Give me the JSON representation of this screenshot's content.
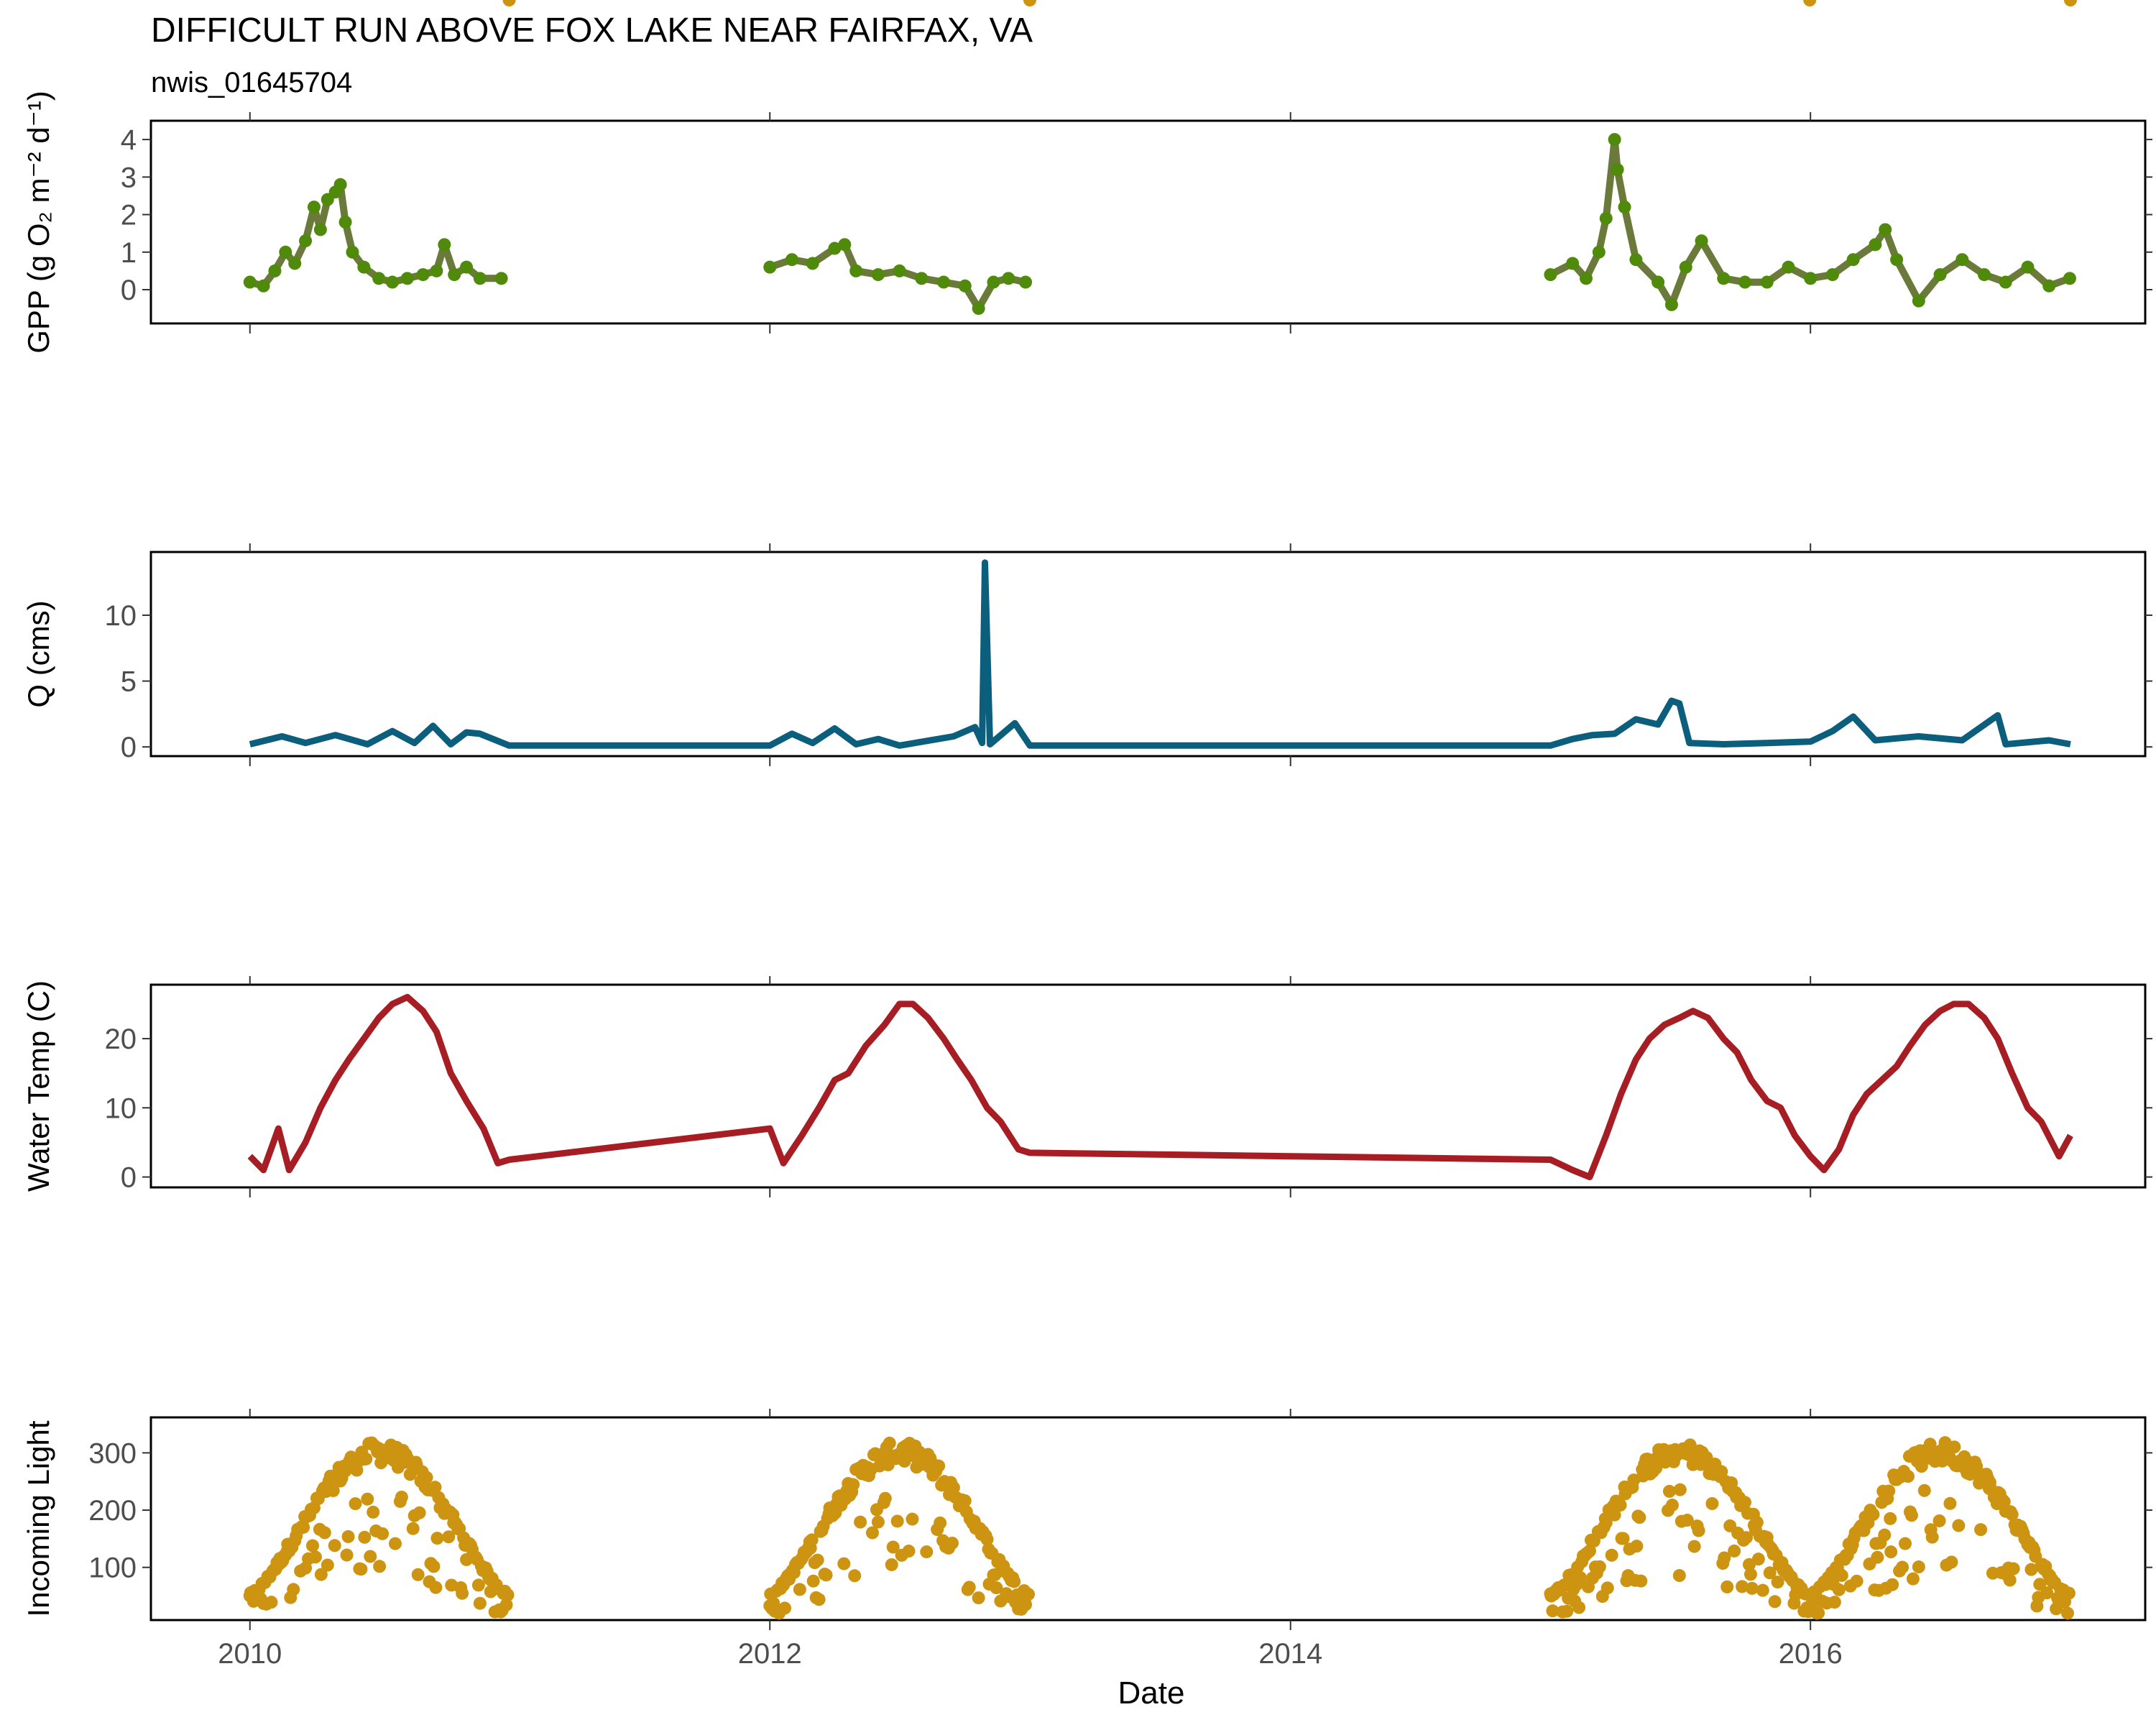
{
  "title": "DIFFICULT RUN ABOVE FOX LAKE NEAR FAIRFAX, VA",
  "subtitle": "nwis_01645704",
  "xlabel": "Date",
  "x_tick_labels": [
    "2010",
    "2012",
    "2014",
    "2016"
  ],
  "chart_data": [
    {
      "type": "scatter",
      "ylabel": "GPP (g  O₂ m⁻² d⁻¹)",
      "color": "#4f8a0b",
      "line_color": "#6b7a3a",
      "ylim": [
        -0.9,
        4.5
      ],
      "yticks": [
        0,
        1,
        2,
        3,
        4
      ],
      "xlim": [
        "2009-08-15",
        "2017-04-15"
      ],
      "segments": [
        {
          "points": [
            [
              "2010-01-01",
              0.2
            ],
            [
              "2010-01-20",
              0.1
            ],
            [
              "2010-02-05",
              0.5
            ],
            [
              "2010-02-20",
              1.0
            ],
            [
              "2010-03-05",
              0.7
            ],
            [
              "2010-03-20",
              1.3
            ],
            [
              "2010-04-01",
              2.2
            ],
            [
              "2010-04-10",
              1.6
            ],
            [
              "2010-04-20",
              2.4
            ],
            [
              "2010-05-01",
              2.6
            ],
            [
              "2010-05-08",
              2.8
            ],
            [
              "2010-05-15",
              1.8
            ],
            [
              "2010-05-25",
              1.0
            ],
            [
              "2010-06-10",
              0.6
            ],
            [
              "2010-07-01",
              0.3
            ],
            [
              "2010-07-20",
              0.2
            ],
            [
              "2010-08-10",
              0.3
            ],
            [
              "2010-09-01",
              0.4
            ],
            [
              "2010-09-20",
              0.5
            ],
            [
              "2010-10-01",
              1.2
            ],
            [
              "2010-10-15",
              0.4
            ],
            [
              "2010-11-01",
              0.6
            ],
            [
              "2010-11-20",
              0.3
            ],
            [
              "2010-12-20",
              0.3
            ]
          ]
        },
        {
          "points": [
            [
              "2012-01-01",
              0.6
            ],
            [
              "2012-02-01",
              0.8
            ],
            [
              "2012-03-01",
              0.7
            ],
            [
              "2012-04-01",
              1.1
            ],
            [
              "2012-04-15",
              1.2
            ],
            [
              "2012-05-01",
              0.5
            ],
            [
              "2012-06-01",
              0.4
            ],
            [
              "2012-07-01",
              0.5
            ],
            [
              "2012-08-01",
              0.3
            ],
            [
              "2012-09-01",
              0.2
            ],
            [
              "2012-10-01",
              0.1
            ],
            [
              "2012-10-20",
              -0.5
            ],
            [
              "2012-11-10",
              0.2
            ],
            [
              "2012-12-01",
              0.3
            ],
            [
              "2012-12-25",
              0.2
            ]
          ]
        },
        {
          "points": [
            [
              "2015-01-01",
              0.4
            ],
            [
              "2015-02-01",
              0.7
            ],
            [
              "2015-02-20",
              0.3
            ],
            [
              "2015-03-10",
              1.0
            ],
            [
              "2015-03-20",
              1.9
            ],
            [
              "2015-04-01",
              4.0
            ],
            [
              "2015-04-05",
              3.2
            ],
            [
              "2015-04-15",
              2.2
            ],
            [
              "2015-05-01",
              0.8
            ],
            [
              "2015-06-01",
              0.2
            ],
            [
              "2015-06-20",
              -0.4
            ],
            [
              "2015-07-10",
              0.6
            ],
            [
              "2015-08-01",
              1.3
            ],
            [
              "2015-09-01",
              0.3
            ],
            [
              "2015-10-01",
              0.2
            ],
            [
              "2015-11-01",
              0.2
            ],
            [
              "2015-12-01",
              0.6
            ],
            [
              "2016-01-01",
              0.3
            ],
            [
              "2016-02-01",
              0.4
            ],
            [
              "2016-03-01",
              0.8
            ],
            [
              "2016-04-01",
              1.2
            ],
            [
              "2016-04-15",
              1.6
            ],
            [
              "2016-05-01",
              0.8
            ],
            [
              "2016-06-01",
              -0.3
            ],
            [
              "2016-07-01",
              0.4
            ],
            [
              "2016-08-01",
              0.8
            ],
            [
              "2016-09-01",
              0.4
            ],
            [
              "2016-10-01",
              0.2
            ],
            [
              "2016-11-01",
              0.6
            ],
            [
              "2016-12-01",
              0.1
            ],
            [
              "2016-12-30",
              0.3
            ]
          ]
        }
      ]
    },
    {
      "type": "line",
      "ylabel": "Q (cms)",
      "color": "#0b5e7c",
      "ylim": [
        -0.7,
        14.8
      ],
      "yticks": [
        0,
        5,
        10
      ],
      "xlim": [
        "2009-08-15",
        "2017-04-15"
      ],
      "points": [
        [
          "2010-01-01",
          0.2
        ],
        [
          "2010-02-15",
          0.8
        ],
        [
          "2010-03-20",
          0.3
        ],
        [
          "2010-05-01",
          0.9
        ],
        [
          "2010-06-15",
          0.2
        ],
        [
          "2010-07-20",
          1.2
        ],
        [
          "2010-08-20",
          0.3
        ],
        [
          "2010-09-15",
          1.6
        ],
        [
          "2010-10-10",
          0.2
        ],
        [
          "2010-11-01",
          1.1
        ],
        [
          "2010-11-20",
          1.0
        ],
        [
          "2010-12-31",
          0.1
        ],
        [
          "2012-01-01",
          0.1
        ],
        [
          "2012-02-01",
          1.0
        ],
        [
          "2012-03-01",
          0.3
        ],
        [
          "2012-04-01",
          1.4
        ],
        [
          "2012-05-01",
          0.2
        ],
        [
          "2012-06-01",
          0.6
        ],
        [
          "2012-07-01",
          0.1
        ],
        [
          "2012-09-15",
          0.8
        ],
        [
          "2012-10-15",
          1.5
        ],
        [
          "2012-10-25",
          0.3
        ],
        [
          "2012-10-29",
          14.0
        ],
        [
          "2012-11-05",
          0.2
        ],
        [
          "2012-12-10",
          1.8
        ],
        [
          "2012-12-31",
          0.1
        ],
        [
          "2015-01-01",
          0.1
        ],
        [
          "2015-02-01",
          0.6
        ],
        [
          "2015-03-01",
          0.9
        ],
        [
          "2015-04-01",
          1.0
        ],
        [
          "2015-05-01",
          2.1
        ],
        [
          "2015-06-01",
          1.7
        ],
        [
          "2015-06-20",
          3.5
        ],
        [
          "2015-07-01",
          3.3
        ],
        [
          "2015-07-15",
          0.3
        ],
        [
          "2015-09-01",
          0.2
        ],
        [
          "2015-11-01",
          0.3
        ],
        [
          "2016-01-01",
          0.4
        ],
        [
          "2016-02-01",
          1.2
        ],
        [
          "2016-03-01",
          2.3
        ],
        [
          "2016-04-01",
          0.5
        ],
        [
          "2016-06-01",
          0.8
        ],
        [
          "2016-08-01",
          0.5
        ],
        [
          "2016-09-20",
          2.4
        ],
        [
          "2016-10-01",
          0.2
        ],
        [
          "2016-12-01",
          0.5
        ],
        [
          "2016-12-31",
          0.2
        ]
      ]
    },
    {
      "type": "line",
      "ylabel": "Water Temp (C)",
      "color": "#a61e23",
      "ylim": [
        -1.5,
        27.8
      ],
      "yticks": [
        0,
        10,
        20
      ],
      "xlim": [
        "2009-08-15",
        "2017-04-15"
      ],
      "points": [
        [
          "2010-01-01",
          3
        ],
        [
          "2010-01-20",
          1
        ],
        [
          "2010-02-10",
          7
        ],
        [
          "2010-02-25",
          1
        ],
        [
          "2010-03-20",
          5
        ],
        [
          "2010-04-10",
          10
        ],
        [
          "2010-05-01",
          14
        ],
        [
          "2010-05-20",
          17
        ],
        [
          "2010-06-10",
          20
        ],
        [
          "2010-07-01",
          23
        ],
        [
          "2010-07-20",
          25
        ],
        [
          "2010-08-10",
          26
        ],
        [
          "2010-09-01",
          24
        ],
        [
          "2010-09-20",
          21
        ],
        [
          "2010-10-10",
          15
        ],
        [
          "2010-11-01",
          11
        ],
        [
          "2010-11-25",
          7
        ],
        [
          "2010-12-15",
          2
        ],
        [
          "2010-12-31",
          2.5
        ],
        [
          "2012-01-01",
          7
        ],
        [
          "2012-01-20",
          2
        ],
        [
          "2012-02-15",
          6
        ],
        [
          "2012-03-10",
          10
        ],
        [
          "2012-04-01",
          14
        ],
        [
          "2012-04-20",
          15
        ],
        [
          "2012-05-15",
          19
        ],
        [
          "2012-06-10",
          22
        ],
        [
          "2012-07-01",
          25
        ],
        [
          "2012-07-20",
          25
        ],
        [
          "2012-08-10",
          23
        ],
        [
          "2012-09-01",
          20
        ],
        [
          "2012-09-20",
          17
        ],
        [
          "2012-10-10",
          14
        ],
        [
          "2012-11-01",
          10
        ],
        [
          "2012-11-20",
          8
        ],
        [
          "2012-12-15",
          4
        ],
        [
          "2012-12-31",
          3.5
        ],
        [
          "2015-01-01",
          2.5
        ],
        [
          "2015-02-01",
          1
        ],
        [
          "2015-02-25",
          0
        ],
        [
          "2015-03-20",
          6
        ],
        [
          "2015-04-10",
          12
        ],
        [
          "2015-05-01",
          17
        ],
        [
          "2015-05-20",
          20
        ],
        [
          "2015-06-10",
          22
        ],
        [
          "2015-07-01",
          23
        ],
        [
          "2015-07-20",
          24
        ],
        [
          "2015-08-10",
          23
        ],
        [
          "2015-09-01",
          20
        ],
        [
          "2015-09-20",
          18
        ],
        [
          "2015-10-10",
          14
        ],
        [
          "2015-11-01",
          11
        ],
        [
          "2015-11-20",
          10
        ],
        [
          "2015-12-10",
          6
        ],
        [
          "2016-01-01",
          3
        ],
        [
          "2016-01-20",
          1
        ],
        [
          "2016-02-10",
          4
        ],
        [
          "2016-03-01",
          9
        ],
        [
          "2016-03-20",
          12
        ],
        [
          "2016-04-10",
          14
        ],
        [
          "2016-05-01",
          16
        ],
        [
          "2016-05-20",
          19
        ],
        [
          "2016-06-10",
          22
        ],
        [
          "2016-07-01",
          24
        ],
        [
          "2016-07-20",
          25
        ],
        [
          "2016-08-10",
          25
        ],
        [
          "2016-09-01",
          23
        ],
        [
          "2016-09-20",
          20
        ],
        [
          "2016-10-10",
          15
        ],
        [
          "2016-11-01",
          10
        ],
        [
          "2016-11-20",
          8
        ],
        [
          "2016-12-15",
          3
        ],
        [
          "2016-12-31",
          6
        ]
      ]
    },
    {
      "type": "scatter",
      "ylabel": "Incoming Light",
      "color": "#cc9411",
      "ylim": [
        8,
        362
      ],
      "yticks": [
        100,
        200,
        300
      ],
      "xlim": [
        "2009-08-15",
        "2017-04-15"
      ],
      "segments": [
        {
          "start": "2010-01-01",
          "end": "2010-12-31"
        },
        {
          "start": "2012-01-01",
          "end": "2012-12-31"
        },
        {
          "start": "2015-01-01",
          "end": "2015-12-31"
        },
        {
          "start": "2016-01-01",
          "end": "2016-12-31"
        }
      ]
    }
  ]
}
